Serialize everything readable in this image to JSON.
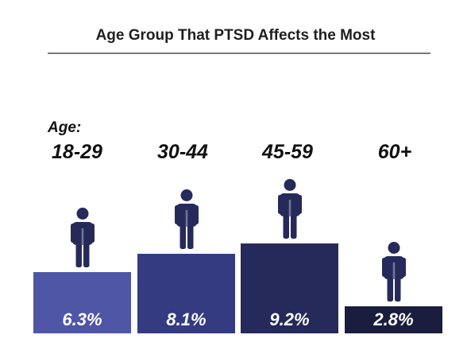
{
  "chart_data": {
    "type": "bar",
    "title": "Age Group That PTSD Affects the Most",
    "category_prefix": "Age:",
    "categories": [
      "18-29",
      "30-44",
      "45-59",
      "60+"
    ],
    "values": [
      6.3,
      8.1,
      9.2,
      2.8
    ],
    "value_labels": [
      "6.3%",
      "8.1%",
      "9.2%",
      "2.8%"
    ],
    "ylim": [
      0,
      10
    ],
    "grid": false,
    "bar_colors": [
      "#4f56a6",
      "#353b80",
      "#262a5a",
      "#1b1d3f"
    ],
    "icon_color": "#262a5a",
    "icon": "person-icon"
  }
}
